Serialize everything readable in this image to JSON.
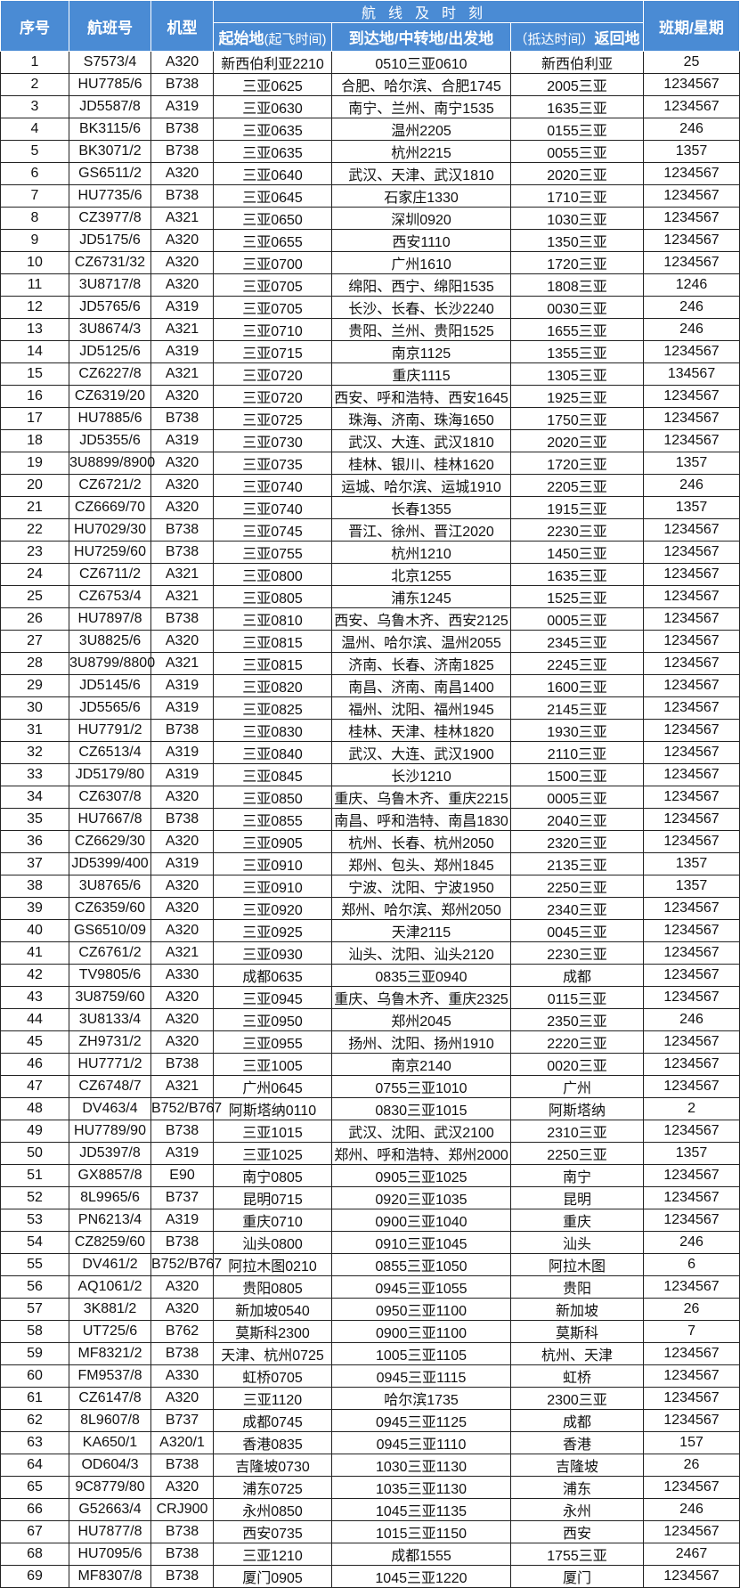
{
  "header": {
    "seq": "序号",
    "flight": "航班号",
    "aircraft": "机型",
    "route_group": "航线及时刻",
    "origin_bold": "起始地",
    "origin_light": "(起飞时间)",
    "via": "到达地/中转地/出发地",
    "return_light": "（抵达时间）",
    "return_bold": "返回地",
    "days": "班期/星期"
  },
  "rows": [
    [
      "1",
      "S7573/4",
      "A320",
      "新西伯利亚2210",
      "0510三亚0610",
      "新西伯利亚",
      "25"
    ],
    [
      "2",
      "HU7785/6",
      "B738",
      "三亚0625",
      "合肥、哈尔滨、合肥1745",
      "2005三亚",
      "1234567"
    ],
    [
      "3",
      "JD5587/8",
      "A319",
      "三亚0630",
      "南宁、兰州、南宁1535",
      "1635三亚",
      "1234567"
    ],
    [
      "4",
      "BK3115/6",
      "B738",
      "三亚0635",
      "温州2205",
      "0155三亚",
      "246"
    ],
    [
      "5",
      "BK3071/2",
      "B738",
      "三亚0635",
      "杭州2215",
      "0055三亚",
      "1357"
    ],
    [
      "6",
      "GS6511/2",
      "A320",
      "三亚0640",
      "武汉、天津、武汉1810",
      "2020三亚",
      "1234567"
    ],
    [
      "7",
      "HU7735/6",
      "B738",
      "三亚0645",
      "石家庄1330",
      "1710三亚",
      "1234567"
    ],
    [
      "8",
      "CZ3977/8",
      "A321",
      "三亚0650",
      "深圳0920",
      "1030三亚",
      "1234567"
    ],
    [
      "9",
      "JD5175/6",
      "A320",
      "三亚0655",
      "西安1110",
      "1350三亚",
      "1234567"
    ],
    [
      "10",
      "CZ6731/32",
      "A320",
      "三亚0700",
      "广州1610",
      "1720三亚",
      "1234567"
    ],
    [
      "11",
      "3U8717/8",
      "A320",
      "三亚0705",
      "绵阳、西宁、绵阳1535",
      "1808三亚",
      "1246"
    ],
    [
      "12",
      "JD5765/6",
      "A319",
      "三亚0705",
      "长沙、长春、长沙2240",
      "0030三亚",
      "246"
    ],
    [
      "13",
      "3U8674/3",
      "A321",
      "三亚0710",
      "贵阳、兰州、贵阳1525",
      "1655三亚",
      "246"
    ],
    [
      "14",
      "JD5125/6",
      "A319",
      "三亚0715",
      "南京1125",
      "1355三亚",
      "1234567"
    ],
    [
      "15",
      "CZ6227/8",
      "A321",
      "三亚0720",
      "重庆1115",
      "1305三亚",
      "134567"
    ],
    [
      "16",
      "CZ6319/20",
      "A320",
      "三亚0720",
      "西安、呼和浩特、西安1645",
      "1925三亚",
      "1234567"
    ],
    [
      "17",
      "HU7885/6",
      "B738",
      "三亚0725",
      "珠海、济南、珠海1650",
      "1750三亚",
      "1234567"
    ],
    [
      "18",
      "JD5355/6",
      "A319",
      "三亚0730",
      "武汉、大连、武汉1810",
      "2020三亚",
      "1234567"
    ],
    [
      "19",
      "3U8899/8900",
      "A320",
      "三亚0735",
      "桂林、银川、桂林1620",
      "1720三亚",
      "1357"
    ],
    [
      "20",
      "CZ6721/2",
      "A320",
      "三亚0740",
      "运城、哈尔滨、运城1910",
      "2205三亚",
      "246"
    ],
    [
      "21",
      "CZ6669/70",
      "A320",
      "三亚0740",
      "长春1355",
      "1915三亚",
      "1357"
    ],
    [
      "22",
      "HU7029/30",
      "B738",
      "三亚0745",
      "晋江、徐州、晋江2020",
      "2230三亚",
      "1234567"
    ],
    [
      "23",
      "HU7259/60",
      "B738",
      "三亚0755",
      "杭州1210",
      "1450三亚",
      "1234567"
    ],
    [
      "24",
      "CZ6711/2",
      "A321",
      "三亚0800",
      "北京1255",
      "1635三亚",
      "1234567"
    ],
    [
      "25",
      "CZ6753/4",
      "A321",
      "三亚0805",
      "浦东1245",
      "1525三亚",
      "1234567"
    ],
    [
      "26",
      "HU7897/8",
      "B738",
      "三亚0810",
      "西安、乌鲁木齐、西安2125",
      "0005三亚",
      "1234567"
    ],
    [
      "27",
      "3U8825/6",
      "A320",
      "三亚0815",
      "温州、哈尔滨、温州2055",
      "2345三亚",
      "1234567"
    ],
    [
      "28",
      "3U8799/8800",
      "A321",
      "三亚0815",
      "济南、长春、济南1825",
      "2245三亚",
      "1234567"
    ],
    [
      "29",
      "JD5145/6",
      "A319",
      "三亚0820",
      "南昌、济南、南昌1400",
      "1600三亚",
      "1234567"
    ],
    [
      "30",
      "JD5565/6",
      "A319",
      "三亚0825",
      "福州、沈阳、福州1945",
      "2145三亚",
      "1234567"
    ],
    [
      "31",
      "HU7791/2",
      "B738",
      "三亚0830",
      "桂林、天津、桂林1820",
      "1930三亚",
      "1234567"
    ],
    [
      "32",
      "CZ6513/4",
      "A319",
      "三亚0840",
      "武汉、大连、武汉1900",
      "2110三亚",
      "1234567"
    ],
    [
      "33",
      "JD5179/80",
      "A319",
      "三亚0845",
      "长沙1210",
      "1500三亚",
      "1234567"
    ],
    [
      "34",
      "CZ6307/8",
      "A320",
      "三亚0850",
      "重庆、乌鲁木齐、重庆2215",
      "0005三亚",
      "1234567"
    ],
    [
      "35",
      "HU7667/8",
      "B738",
      "三亚0855",
      "南昌、呼和浩特、南昌1830",
      "2040三亚",
      "1234567"
    ],
    [
      "36",
      "CZ6629/30",
      "A320",
      "三亚0905",
      "杭州、长春、杭州2050",
      "2320三亚",
      "1234567"
    ],
    [
      "37",
      "JD5399/400",
      "A319",
      "三亚0910",
      "郑州、包头、郑州1845",
      "2135三亚",
      "1357"
    ],
    [
      "38",
      "3U8765/6",
      "A320",
      "三亚0910",
      "宁波、沈阳、宁波1950",
      "2250三亚",
      "1357"
    ],
    [
      "39",
      "CZ6359/60",
      "A320",
      "三亚0920",
      "郑州、哈尔滨、郑州2050",
      "2340三亚",
      "1234567"
    ],
    [
      "40",
      "GS6510/09",
      "A320",
      "三亚0925",
      "天津2115",
      "0045三亚",
      "1234567"
    ],
    [
      "41",
      "CZ6761/2",
      "A321",
      "三亚0930",
      "汕头、沈阳、汕头2120",
      "2230三亚",
      "1234567"
    ],
    [
      "42",
      "TV9805/6",
      "A330",
      "成都0635",
      "0835三亚0940",
      "成都",
      "1234567"
    ],
    [
      "43",
      "3U8759/60",
      "A320",
      "三亚0945",
      "重庆、乌鲁木齐、重庆2325",
      "0115三亚",
      "1234567"
    ],
    [
      "44",
      "3U8133/4",
      "A320",
      "三亚0950",
      "郑州2045",
      "2350三亚",
      "246"
    ],
    [
      "45",
      "ZH9731/2",
      "A320",
      "三亚0955",
      "扬州、沈阳、扬州1910",
      "2220三亚",
      "1234567"
    ],
    [
      "46",
      "HU7771/2",
      "B738",
      "三亚1005",
      "南京2140",
      "0020三亚",
      "1234567"
    ],
    [
      "47",
      "CZ6748/7",
      "A321",
      "广州0645",
      "0755三亚1010",
      "广州",
      "1234567"
    ],
    [
      "48",
      "DV463/4",
      "B752/B767",
      "阿斯塔纳0110",
      "0830三亚1015",
      "阿斯塔纳",
      "2"
    ],
    [
      "49",
      "HU7789/90",
      "B738",
      "三亚1015",
      "武汉、沈阳、武汉2100",
      "2310三亚",
      "1234567"
    ],
    [
      "50",
      "JD5397/8",
      "A319",
      "三亚1025",
      "郑州、呼和浩特、郑州2000",
      "2250三亚",
      "1357"
    ],
    [
      "51",
      "GX8857/8",
      "E90",
      "南宁0805",
      "0905三亚1025",
      "南宁",
      "1234567"
    ],
    [
      "52",
      "8L9965/6",
      "B737",
      "昆明0715",
      "0920三亚1035",
      "昆明",
      "1234567"
    ],
    [
      "53",
      "PN6213/4",
      "A319",
      "重庆0710",
      "0900三亚1040",
      "重庆",
      "1234567"
    ],
    [
      "54",
      "CZ8259/60",
      "B738",
      "汕头0800",
      "0910三亚1045",
      "汕头",
      "246"
    ],
    [
      "55",
      "DV461/2",
      "B752/B767",
      "阿拉木图0210",
      "0855三亚1050",
      "阿拉木图",
      "6"
    ],
    [
      "56",
      "AQ1061/2",
      "A320",
      "贵阳0805",
      "0945三亚1055",
      "贵阳",
      "1234567"
    ],
    [
      "57",
      "3K881/2",
      "A320",
      "新加坡0540",
      "0950三亚1100",
      "新加坡",
      "26"
    ],
    [
      "58",
      "UT725/6",
      "B762",
      "莫斯科2300",
      "0900三亚1100",
      "莫斯科",
      "7"
    ],
    [
      "59",
      "MF8321/2",
      "B738",
      "天津、杭州0725",
      "1005三亚1105",
      "杭州、天津",
      "1234567"
    ],
    [
      "60",
      "FM9537/8",
      "A330",
      "虹桥0705",
      "0945三亚1115",
      "虹桥",
      "1234567"
    ],
    [
      "61",
      "CZ6147/8",
      "A320",
      "三亚1120",
      "哈尔滨1735",
      "2300三亚",
      "1234567"
    ],
    [
      "62",
      "8L9607/8",
      "B737",
      "成都0745",
      "0945三亚1125",
      "成都",
      "1234567"
    ],
    [
      "63",
      "KA650/1",
      "A320/1",
      "香港0835",
      "0945三亚1110",
      "香港",
      "157"
    ],
    [
      "64",
      "OD604/3",
      "B738",
      "吉隆坡0730",
      "1030三亚1130",
      "吉隆坡",
      "26"
    ],
    [
      "65",
      "9C8779/80",
      "A320",
      "浦东0725",
      "1035三亚1130",
      "浦东",
      "1234567"
    ],
    [
      "66",
      "G52663/4",
      "CRJ900",
      "永州0850",
      "1045三亚1135",
      "永州",
      "246"
    ],
    [
      "67",
      "HU7877/8",
      "B738",
      "西安0735",
      "1015三亚1150",
      "西安",
      "1234567"
    ],
    [
      "68",
      "HU7095/6",
      "B738",
      "三亚1210",
      "成都1555",
      "1755三亚",
      "2467"
    ],
    [
      "69",
      "MF8307/8",
      "B738",
      "厦门0905",
      "1045三亚1220",
      "厦门",
      "1234567"
    ]
  ],
  "colors": {
    "header_bg": "#4a8bd4",
    "header_text": "#ffffff",
    "grid": "#222222"
  }
}
